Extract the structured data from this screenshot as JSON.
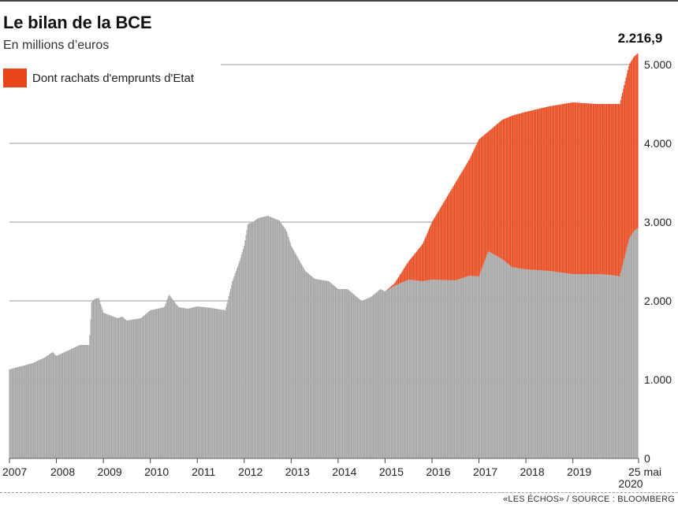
{
  "header": {
    "title": "Le bilan de la BCE",
    "subtitle": "En millions d’euros"
  },
  "legend": {
    "label": "Dont rachats d'emprunts d'Etat",
    "color": "#e8461a"
  },
  "annotation": {
    "last_value_label": "2.216,9"
  },
  "source": "«LES ÉCHOS» / SOURCE : BLOOMBERG",
  "chart_data": {
    "type": "area",
    "title": "Le bilan de la BCE",
    "subtitle": "En millions d’euros",
    "xlabel": "",
    "ylabel": "",
    "x_range": [
      2007.0,
      2020.4
    ],
    "ylim": [
      0,
      5000
    ],
    "y_ticks": [
      0,
      1000,
      2000,
      3000,
      4000,
      5000
    ],
    "y_tick_labels": [
      "0",
      "1.000",
      "2.000",
      "3.000",
      "4.000",
      "5.000"
    ],
    "y_axis_side": "right",
    "x_ticks": [
      2007,
      2008,
      2009,
      2010,
      2011,
      2012,
      2013,
      2014,
      2015,
      2016,
      2017,
      2018,
      2019,
      2020.4
    ],
    "x_tick_labels": [
      "2007",
      "2008",
      "2009",
      "2010",
      "2011",
      "2012",
      "2013",
      "2014",
      "2015",
      "2016",
      "2017",
      "2018",
      "2019",
      "25 mai"
    ],
    "x_tick_sublabel": "2020",
    "grid": true,
    "legend_position": "top-left",
    "colors": {
      "total": "#a3a3a3",
      "government_bonds": "#e8461a"
    },
    "series": [
      {
        "key": "total",
        "x": [
          2007.0,
          2007.5,
          2007.75,
          2007.92,
          2008.0,
          2008.5,
          2008.7,
          2008.75,
          2008.8,
          2008.9,
          2009.0,
          2009.3,
          2009.4,
          2009.5,
          2009.8,
          2010.0,
          2010.3,
          2010.4,
          2010.6,
          2010.8,
          2011.0,
          2011.3,
          2011.6,
          2011.75,
          2011.9,
          2012.0,
          2012.08,
          2012.15,
          2012.3,
          2012.5,
          2012.75,
          2012.9,
          2013.0,
          2013.3,
          2013.5,
          2013.8,
          2014.0,
          2014.2,
          2014.4,
          2014.5,
          2014.7,
          2014.9,
          2015.0,
          2015.2,
          2015.5,
          2015.8,
          2016.0,
          2016.5,
          2016.8,
          2017.0,
          2017.2,
          2017.5,
          2017.7,
          2018.0,
          2018.5,
          2019.0,
          2019.5,
          2019.8,
          2020.0,
          2020.1,
          2020.2,
          2020.3,
          2020.4
        ],
        "values": [
          1130,
          1210,
          1280,
          1350,
          1300,
          1440,
          1440,
          1980,
          2020,
          2040,
          1850,
          1780,
          1800,
          1750,
          1780,
          1880,
          1920,
          2080,
          1920,
          1900,
          1930,
          1910,
          1880,
          2250,
          2500,
          2700,
          2980,
          2990,
          3050,
          3080,
          3020,
          2890,
          2700,
          2380,
          2280,
          2250,
          2150,
          2150,
          2050,
          2000,
          2050,
          2150,
          2120,
          2220,
          2500,
          2720,
          3000,
          3500,
          3800,
          4050,
          4150,
          4300,
          4350,
          4400,
          4470,
          4520,
          4500,
          4500,
          4500,
          4750,
          5000,
          5100,
          5150
        ]
      },
      {
        "key": "government_bonds",
        "name": "Dont rachats d'emprunts d'Etat",
        "x": [
          2015.0,
          2015.2,
          2015.5,
          2015.8,
          2016.0,
          2016.5,
          2016.8,
          2017.0,
          2017.2,
          2017.5,
          2017.7,
          2018.0,
          2018.5,
          2019.0,
          2019.5,
          2019.8,
          2020.0,
          2020.1,
          2020.2,
          2020.3,
          2020.4
        ],
        "values": [
          0,
          30,
          230,
          470,
          730,
          1240,
          1480,
          1740,
          1520,
          1770,
          1920,
          2000,
          2090,
          2180,
          2160,
          2170,
          2190,
          2200,
          2210,
          2214,
          2216.9
        ]
      }
    ]
  }
}
